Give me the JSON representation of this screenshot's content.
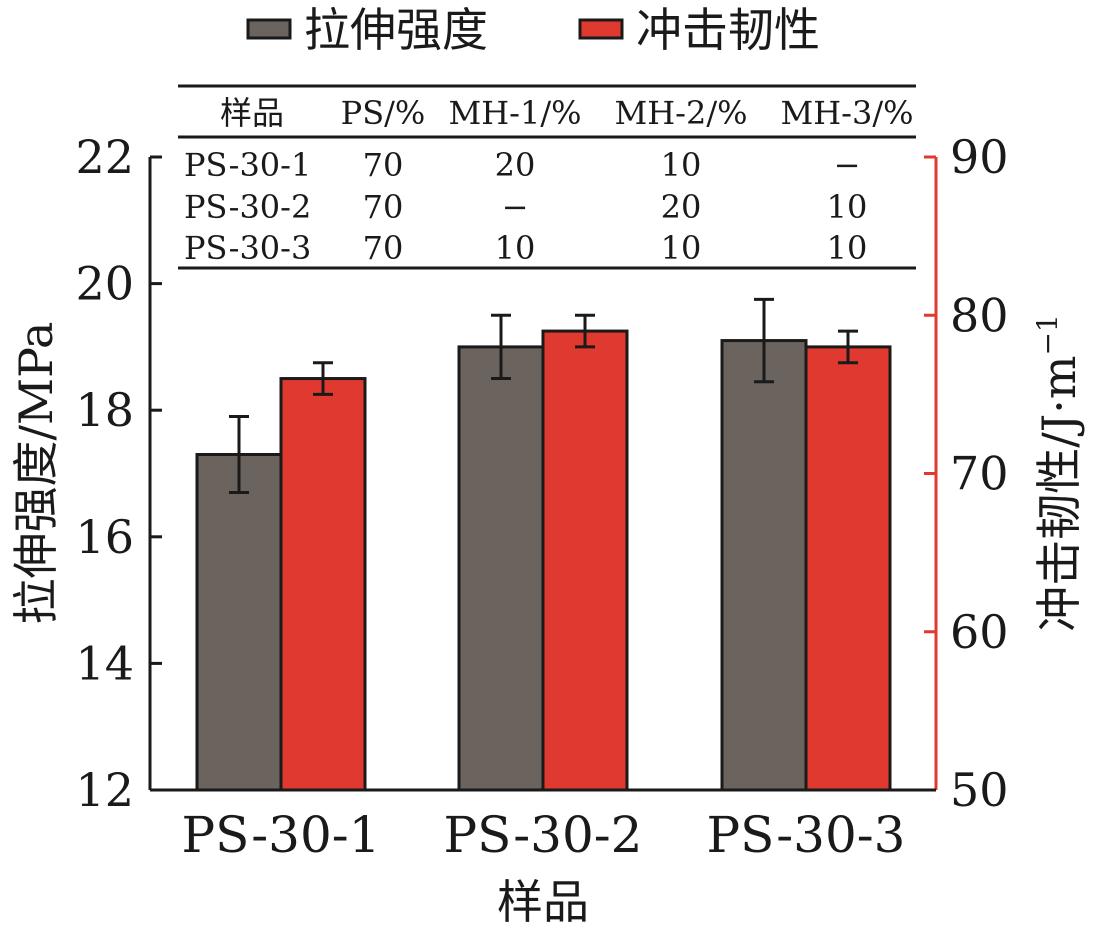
{
  "chart_data": {
    "type": "bar",
    "categories": [
      "PS-30-1",
      "PS-30-2",
      "PS-30-3"
    ],
    "xlabel": "样品",
    "ylabel_left": "拉伸强度/MPa",
    "ylabel_right_main": "冲击韧性/J·m",
    "ylabel_right_exp": "−1",
    "ylim_left": [
      12,
      22
    ],
    "yticks_left": [
      12,
      14,
      16,
      18,
      20,
      22
    ],
    "ylim_right": [
      50,
      90
    ],
    "yticks_right": [
      50,
      60,
      70,
      80,
      90
    ],
    "legend_position": "top",
    "series": [
      {
        "name": "拉伸强度",
        "axis": "left",
        "color": "#6b635e",
        "values": [
          17.3,
          19.0,
          19.1
        ],
        "errors": [
          0.6,
          0.5,
          0.65
        ]
      },
      {
        "name": "冲击韧性",
        "axis": "right",
        "color": "#e0392f",
        "values": [
          76.0,
          79.0,
          78.0
        ],
        "errors": [
          1.0,
          1.0,
          1.0
        ]
      }
    ],
    "right_axis_color": "#e0392f",
    "grid": false
  },
  "table": {
    "headers": [
      "样品",
      "PS/%",
      "MH-1/%",
      "MH-2/%",
      "MH-3/%"
    ],
    "rows": [
      [
        "PS-30-1",
        "70",
        "20",
        "10",
        "−"
      ],
      [
        "PS-30-2",
        "70",
        "−",
        "20",
        "10"
      ],
      [
        "PS-30-3",
        "70",
        "10",
        "10",
        "10"
      ]
    ]
  }
}
